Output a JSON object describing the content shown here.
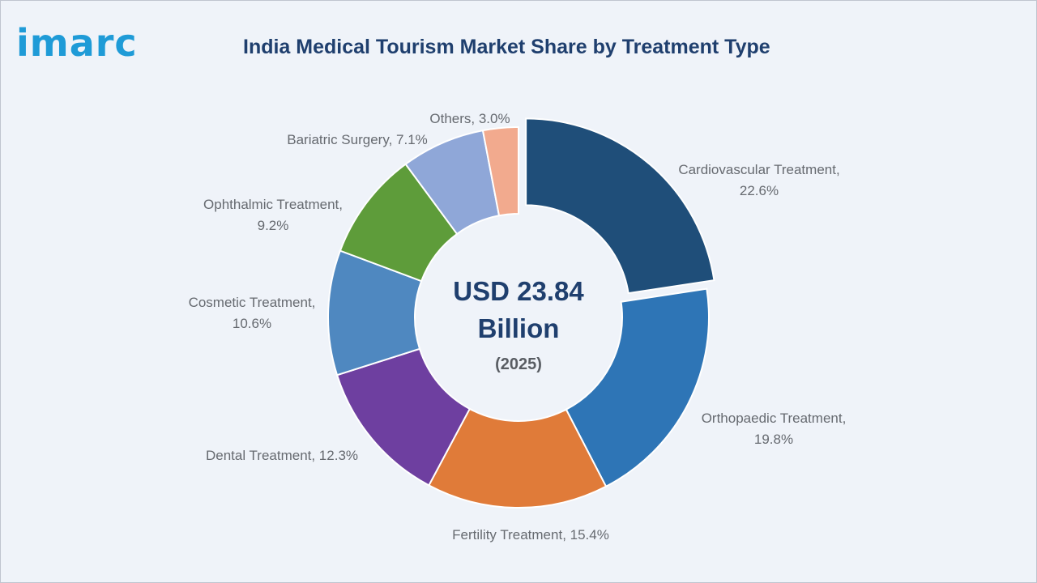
{
  "brand": {
    "logo_text": "imarc"
  },
  "chart_data": {
    "type": "pie",
    "title": "India Medical Tourism Market Share by Treatment Type",
    "center_value_line1": "USD 23.84",
    "center_value_line2": "Billion",
    "center_year": "(2025)",
    "slices": [
      {
        "name": "Cardiovascular Treatment",
        "value": 22.6,
        "color": "#1f4e79",
        "exploded": true,
        "label_lines": [
          "Cardiovascular Treatment,",
          "22.6%"
        ]
      },
      {
        "name": "Orthopaedic Treatment",
        "value": 19.8,
        "color": "#2e75b6",
        "label_lines": [
          "Orthopaedic Treatment,",
          "19.8%"
        ]
      },
      {
        "name": "Fertility Treatment",
        "value": 15.4,
        "color": "#e07b39",
        "label_lines": [
          "Fertility Treatment, 15.4%"
        ]
      },
      {
        "name": "Dental Treatment",
        "value": 12.3,
        "color": "#6e3fa0",
        "label_lines": [
          "Dental Treatment, 12.3%"
        ]
      },
      {
        "name": "Cosmetic Treatment",
        "value": 10.6,
        "color": "#4f88c0",
        "label_lines": [
          "Cosmetic Treatment,",
          "10.6%"
        ]
      },
      {
        "name": "Ophthalmic Treatment",
        "value": 9.2,
        "color": "#5e9c3a",
        "label_lines": [
          "Ophthalmic Treatment,",
          "9.2%"
        ]
      },
      {
        "name": "Bariatric Surgery",
        "value": 7.1,
        "color": "#8fa7d8",
        "label_lines": [
          "Bariatric Surgery, 7.1%"
        ]
      },
      {
        "name": "Others",
        "value": 3.0,
        "color": "#f2aa8e",
        "label_lines": [
          "Others, 3.0%"
        ]
      }
    ]
  }
}
